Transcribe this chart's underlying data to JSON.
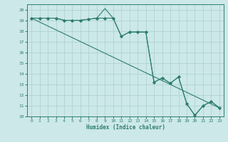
{
  "xlabel": "Humidex (Indice chaleur)",
  "xlim": [
    -0.5,
    23.5
  ],
  "ylim": [
    10,
    20.5
  ],
  "yticks": [
    10,
    11,
    12,
    13,
    14,
    15,
    16,
    17,
    18,
    19,
    20
  ],
  "xticks": [
    0,
    1,
    2,
    3,
    4,
    5,
    6,
    7,
    8,
    9,
    10,
    11,
    12,
    13,
    14,
    15,
    16,
    17,
    18,
    19,
    20,
    21,
    22,
    23
  ],
  "bg_color": "#cce8e8",
  "grid_color": "#aacfcf",
  "line_color": "#2e7d6e",
  "line1_x": [
    0,
    1,
    2,
    3,
    4,
    5,
    6,
    7,
    8,
    9,
    10,
    11,
    12,
    13,
    14,
    15,
    16,
    17,
    18,
    19,
    20,
    21,
    22,
    23
  ],
  "line1_y": [
    19.2,
    19.2,
    19.2,
    19.2,
    19.0,
    19.0,
    19.0,
    19.1,
    19.2,
    19.2,
    19.2,
    17.5,
    17.9,
    17.9,
    17.9,
    13.2,
    13.6,
    13.1,
    13.7,
    11.2,
    10.1,
    11.0,
    11.4,
    10.8
  ],
  "line2_x": [
    0,
    1,
    2,
    3,
    4,
    5,
    6,
    7,
    8,
    9,
    10,
    11,
    12,
    13,
    14,
    15,
    16,
    17,
    18,
    19,
    20,
    21,
    22,
    23
  ],
  "line2_y": [
    19.2,
    19.2,
    19.2,
    19.2,
    19.0,
    19.0,
    19.0,
    19.1,
    19.2,
    20.1,
    19.2,
    17.5,
    17.9,
    17.9,
    17.9,
    13.2,
    13.6,
    13.1,
    13.7,
    11.2,
    10.1,
    11.0,
    11.4,
    10.8
  ],
  "line3_x": [
    0,
    23
  ],
  "line3_y": [
    19.2,
    10.8
  ]
}
